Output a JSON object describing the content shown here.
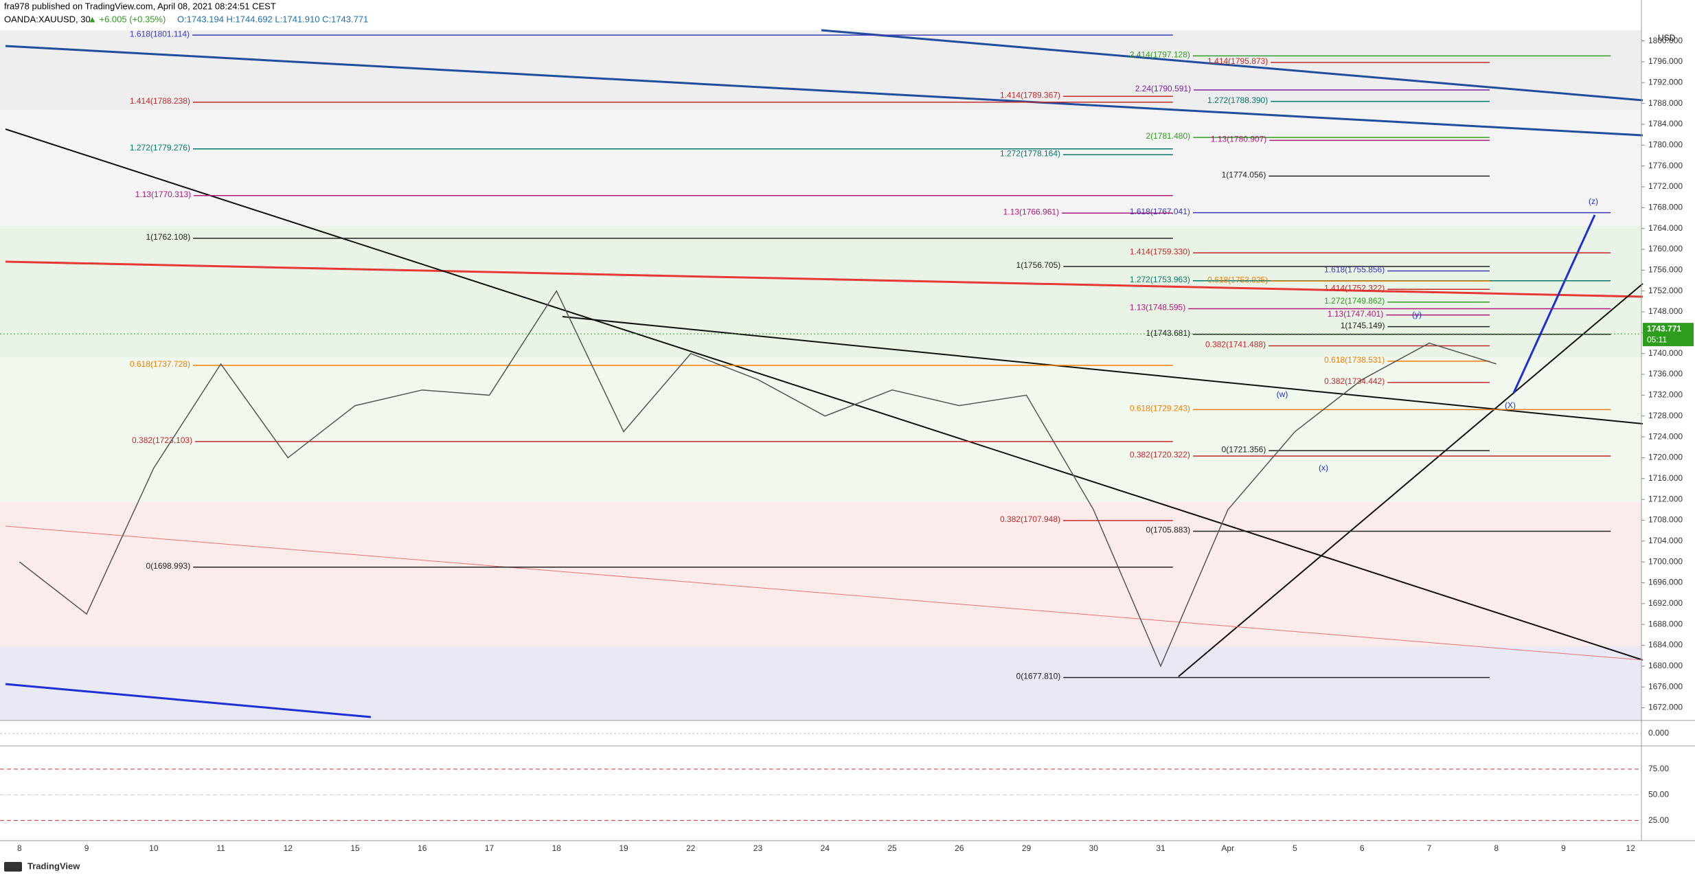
{
  "header": {
    "publisher": "fra978 published on TradingView.com, April 08, 2021 08:24:51 CEST",
    "symbol": "OANDA:XAUUSD, 30",
    "change": "▲ +6.005 (+0.35%)",
    "ohlc": "O:1743.194 H:1744.692 L:1741.910 C:1743.771"
  },
  "footer": {
    "brand": "TradingView"
  },
  "chart_data": {
    "type": "line",
    "currency": "USD",
    "categories": [
      "8",
      "9",
      "10",
      "11",
      "12",
      "15",
      "16",
      "17",
      "18",
      "19",
      "22",
      "23",
      "24",
      "25",
      "26",
      "29",
      "30",
      "31",
      "Apr",
      "5",
      "6",
      "7",
      "8",
      "9",
      "12"
    ],
    "series": [
      {
        "name": "OANDA:XAUUSD, 30",
        "color": "#555555",
        "values": [
          1700,
          1690,
          1718,
          1738,
          1720,
          1730,
          1733,
          1732,
          1752,
          1725,
          1740,
          1735,
          1728,
          1733,
          1730,
          1732,
          1710,
          1680,
          1710,
          1725,
          1735,
          1742,
          1738,
          null,
          null
        ]
      }
    ],
    "ylim": [
      1669.7,
      1803.9
    ],
    "yticks": [
      {
        "value": 1672,
        "label": "1672.000"
      },
      {
        "value": 1676,
        "label": "1676.000"
      },
      {
        "value": 1680,
        "label": "1680.000"
      },
      {
        "value": 1684,
        "label": "1684.000"
      },
      {
        "value": 1688,
        "label": "1688.000"
      },
      {
        "value": 1692,
        "label": "1692.000"
      },
      {
        "value": 1696,
        "label": "1696.000"
      },
      {
        "value": 1700,
        "label": "1700.000"
      },
      {
        "value": 1704,
        "label": "1704.000"
      },
      {
        "value": 1708,
        "label": "1708.000"
      },
      {
        "value": 1712,
        "label": "1712.000"
      },
      {
        "value": 1716,
        "label": "1716.000"
      },
      {
        "value": 1720,
        "label": "1720.000"
      },
      {
        "value": 1724,
        "label": "1724.000"
      },
      {
        "value": 1728,
        "label": "1728.000"
      },
      {
        "value": 1732,
        "label": "1732.000"
      },
      {
        "value": 1736,
        "label": "1736.000"
      },
      {
        "value": 1740,
        "label": "1740.000"
      },
      {
        "value": 1744,
        "label": "1744.000"
      },
      {
        "value": 1748,
        "label": "1748.000"
      },
      {
        "value": 1752,
        "label": "1752.000"
      },
      {
        "value": 1756,
        "label": "1756.000"
      },
      {
        "value": 1760,
        "label": "1760.000"
      },
      {
        "value": 1764,
        "label": "1764.000"
      },
      {
        "value": 1768,
        "label": "1768.000"
      },
      {
        "value": 1772,
        "label": "1772.000"
      },
      {
        "value": 1776,
        "label": "1776.000"
      },
      {
        "value": 1780,
        "label": "1780.000"
      },
      {
        "value": 1784,
        "label": "1784.000"
      },
      {
        "value": 1788,
        "label": "1788.000"
      },
      {
        "value": 1792,
        "label": "1792.000"
      },
      {
        "value": 1796,
        "label": "1796.000"
      },
      {
        "value": 1800,
        "label": "1800.000"
      }
    ],
    "last_price": {
      "value": 1743.771,
      "label": "1743.771"
    },
    "countdown": "05:11",
    "levels": [
      {
        "label": "1.618(1801.114)",
        "value": 1801.114,
        "color": "#3a3ab8"
      },
      {
        "label": "1.414(1788.238)",
        "value": 1788.238,
        "color": "#c62828"
      },
      {
        "label": "1.272(1779.276)",
        "value": 1779.276,
        "color": "#00796b"
      },
      {
        "label": "1.13(1770.313)",
        "value": 1770.313,
        "color": "#b0187a"
      },
      {
        "label": "1(1762.108)",
        "value": 1762.108,
        "color": "#222222"
      },
      {
        "label": "0.618(1737.728)",
        "value": 1737.728,
        "color": "#f57c00"
      },
      {
        "label": "0.382(1723.103)",
        "value": 1723.103,
        "color": "#c62828"
      },
      {
        "label": "0(1698.993)",
        "value": 1698.993,
        "color": "#222222"
      },
      {
        "label": "2.414(1797.128)",
        "value": 1797.128,
        "color": "#2e9d1e"
      },
      {
        "label": "1.414(1795.873)",
        "value": 1795.873,
        "color": "#c62828"
      },
      {
        "label": "2.24(1790.591)",
        "value": 1790.591,
        "color": "#7b1fa2"
      },
      {
        "label": "1.272(1788.390)",
        "value": 1788.39,
        "color": "#00796b"
      },
      {
        "label": "1.414(1789.367)",
        "value": 1789.367,
        "color": "#c62828"
      },
      {
        "label": "2(1781.480)",
        "value": 1781.48,
        "color": "#2e9d1e"
      },
      {
        "label": "1.13(1780.907)",
        "value": 1780.907,
        "color": "#b0187a"
      },
      {
        "label": "1.272(1778.164)",
        "value": 1778.164,
        "color": "#00796b"
      },
      {
        "label": "1(1774.056)",
        "value": 1774.056,
        "color": "#222222"
      },
      {
        "label": "1.13(1766.961)",
        "value": 1766.961,
        "color": "#b0187a"
      },
      {
        "label": "1.618(1767.041)",
        "value": 1767.041,
        "color": "#3a3ab8"
      },
      {
        "label": "1.414(1759.330)",
        "value": 1759.33,
        "color": "#c62828"
      },
      {
        "label": "1(1756.705)",
        "value": 1756.705,
        "color": "#222222"
      },
      {
        "label": "1.618(1755.856)",
        "value": 1755.856,
        "color": "#3a3ab8"
      },
      {
        "label": "1.272(1753.963)",
        "value": 1753.963,
        "color": "#00796b"
      },
      {
        "label": "0.618(1753.925)",
        "value": 1753.925,
        "color": "#f57c00"
      },
      {
        "label": "1.414(1752.322)",
        "value": 1752.322,
        "color": "#c62828"
      },
      {
        "label": "1.272(1749.862)",
        "value": 1749.862,
        "color": "#2e9d1e"
      },
      {
        "label": "1.13(1748.595)",
        "value": 1748.595,
        "color": "#b0187a"
      },
      {
        "label": "1.13(1747.401)",
        "value": 1747.401,
        "color": "#b0187a"
      },
      {
        "label": "1(1745.149)",
        "value": 1745.149,
        "color": "#222222"
      },
      {
        "label": "1(1743.681)",
        "value": 1743.681,
        "color": "#222222"
      },
      {
        "label": "0.382(1741.488)",
        "value": 1741.488,
        "color": "#c62828"
      },
      {
        "label": "0.618(1738.531)",
        "value": 1738.531,
        "color": "#f57c00"
      },
      {
        "label": "0.382(1734.442)",
        "value": 1734.442,
        "color": "#c62828"
      },
      {
        "label": "0.618(1729.243)",
        "value": 1729.243,
        "color": "#f57c00"
      },
      {
        "label": "0(1721.356)",
        "value": 1721.356,
        "color": "#222222"
      },
      {
        "label": "0.382(1720.322)",
        "value": 1720.322,
        "color": "#c62828"
      },
      {
        "label": "0.382(1707.948)",
        "value": 1707.948,
        "color": "#c62828"
      },
      {
        "label": "0(1705.883)",
        "value": 1705.883,
        "color": "#222222"
      },
      {
        "label": "0(1677.810)",
        "value": 1677.81,
        "color": "#222222"
      }
    ],
    "annotations": [
      "(z)",
      "(y)",
      "(x)",
      "(w)",
      "(X)"
    ],
    "oscillator": {
      "ylim": [
        -3,
        3
      ],
      "yticks": [
        {
          "value": 0,
          "label": "0.000"
        }
      ]
    },
    "rsi": {
      "ylim": [
        6.7,
        95
      ],
      "yticks": [
        {
          "value": 75,
          "label": "75.00"
        },
        {
          "value": 50,
          "label": "50.00"
        },
        {
          "value": 25,
          "label": "25.00"
        }
      ]
    }
  }
}
